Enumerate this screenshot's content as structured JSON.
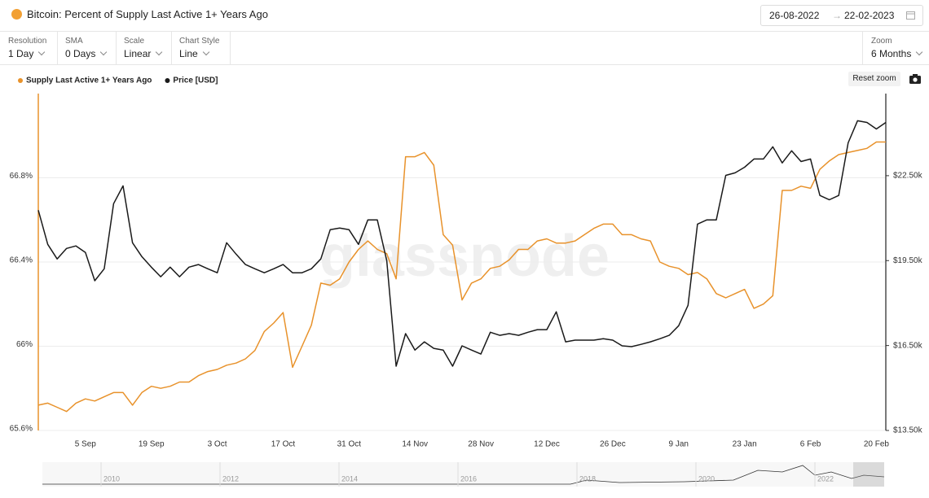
{
  "header": {
    "title": "Bitcoin: Percent of Supply Last Active 1+ Years Ago",
    "date_from": "26-08-2022",
    "date_to": "22-02-2023"
  },
  "controls": [
    {
      "label": "Resolution",
      "value": "1 Day"
    },
    {
      "label": "SMA",
      "value": "0 Days"
    },
    {
      "label": "Scale",
      "value": "Linear"
    },
    {
      "label": "Chart Style",
      "value": "Line"
    }
  ],
  "zoom": {
    "label": "Zoom",
    "value": "6 Months"
  },
  "reset_zoom": "Reset zoom",
  "watermark": "glassnode",
  "navigator_years": [
    "2010",
    "2012",
    "2014",
    "2016",
    "2018",
    "2020",
    "2022"
  ],
  "chart_data": {
    "type": "line",
    "categories": [
      null,
      null,
      null,
      null,
      null,
      "5 Sep",
      null,
      null,
      null,
      null,
      null,
      null,
      "19 Sep",
      null,
      null,
      null,
      null,
      null,
      null,
      "3 Oct",
      null,
      null,
      null,
      null,
      null,
      null,
      "17 Oct",
      null,
      null,
      null,
      null,
      null,
      null,
      "31 Oct",
      null,
      null,
      null,
      null,
      null,
      null,
      "14 Nov",
      null,
      null,
      null,
      null,
      null,
      null,
      "28 Nov",
      null,
      null,
      null,
      null,
      null,
      null,
      "12 Dec",
      null,
      null,
      null,
      null,
      null,
      null,
      "26 Dec",
      null,
      null,
      null,
      null,
      null,
      null,
      "9 Jan",
      null,
      null,
      null,
      null,
      null,
      null,
      "23 Jan",
      null,
      null,
      null,
      null,
      null,
      null,
      "6 Feb",
      null,
      null,
      null,
      null,
      null,
      null,
      "20 Feb",
      null
    ],
    "series": [
      {
        "name": "Supply Last Active 1+ Years Ago",
        "color": "#e8922b",
        "axis": "y",
        "values": [
          65.72,
          65.73,
          65.71,
          65.69,
          65.73,
          65.75,
          65.74,
          65.76,
          65.78,
          65.78,
          65.72,
          65.78,
          65.81,
          65.8,
          65.81,
          65.83,
          65.83,
          65.86,
          65.88,
          65.89,
          65.91,
          65.92,
          65.94,
          65.98,
          66.07,
          66.11,
          66.16,
          65.9,
          66.0,
          66.1,
          66.3,
          66.29,
          66.32,
          66.4,
          66.46,
          66.5,
          66.46,
          66.44,
          66.32,
          66.9,
          66.9,
          66.92,
          66.86,
          66.53,
          66.48,
          66.22,
          66.3,
          66.32,
          66.37,
          66.38,
          66.41,
          66.46,
          66.46,
          66.5,
          66.51,
          66.49,
          66.49,
          66.5,
          66.53,
          66.56,
          66.58,
          66.58,
          66.53,
          66.53,
          66.51,
          66.5,
          66.4,
          66.38,
          66.37,
          66.34,
          66.35,
          66.32,
          66.25,
          66.23,
          66.25,
          66.27,
          66.18,
          66.2,
          66.24,
          66.74,
          66.74,
          66.76,
          66.75,
          66.84,
          66.88,
          66.91,
          66.92,
          66.93,
          66.94,
          66.97,
          66.97
        ]
      },
      {
        "name": "Price [USD]",
        "color": "#1a1a1a",
        "axis": "y2",
        "values": [
          21280,
          20075,
          19560,
          19930,
          20020,
          19790,
          18790,
          19210,
          21510,
          22140,
          20130,
          19640,
          19270,
          18930,
          19270,
          18930,
          19270,
          19360,
          19210,
          19070,
          20130,
          19730,
          19360,
          19210,
          19070,
          19210,
          19360,
          19070,
          19070,
          19210,
          19560,
          20590,
          20650,
          20590,
          20075,
          20940,
          20940,
          19500,
          15770,
          16920,
          16340,
          16630,
          16400,
          16340,
          15770,
          16490,
          16340,
          16200,
          16970,
          16860,
          16920,
          16860,
          16970,
          17060,
          17060,
          17690,
          16630,
          16690,
          16690,
          16690,
          16740,
          16690,
          16490,
          16460,
          16540,
          16630,
          16740,
          16860,
          17200,
          17920,
          20790,
          20940,
          20940,
          22510,
          22600,
          22800,
          23090,
          23090,
          23520,
          22950,
          23380,
          23000,
          23090,
          21800,
          21650,
          21800,
          23660,
          24440,
          24380,
          24150,
          24380
        ]
      }
    ],
    "ylim": [
      65.6,
      67.2
    ],
    "yticks": [
      {
        "value": 65.6,
        "label": "65.6%"
      },
      {
        "value": 66,
        "label": "66%"
      },
      {
        "value": 66.4,
        "label": "66.4%"
      },
      {
        "value": 66.8,
        "label": "66.8%"
      }
    ],
    "y2lim": [
      13500,
      25400
    ],
    "y2ticks": [
      {
        "value": 13500,
        "label": "$13.50k"
      },
      {
        "value": 16500,
        "label": "$16.50k"
      },
      {
        "value": 19500,
        "label": "$19.50k"
      },
      {
        "value": 22500,
        "label": "$22.50k"
      }
    ],
    "grid": true,
    "legend": "top-left"
  }
}
